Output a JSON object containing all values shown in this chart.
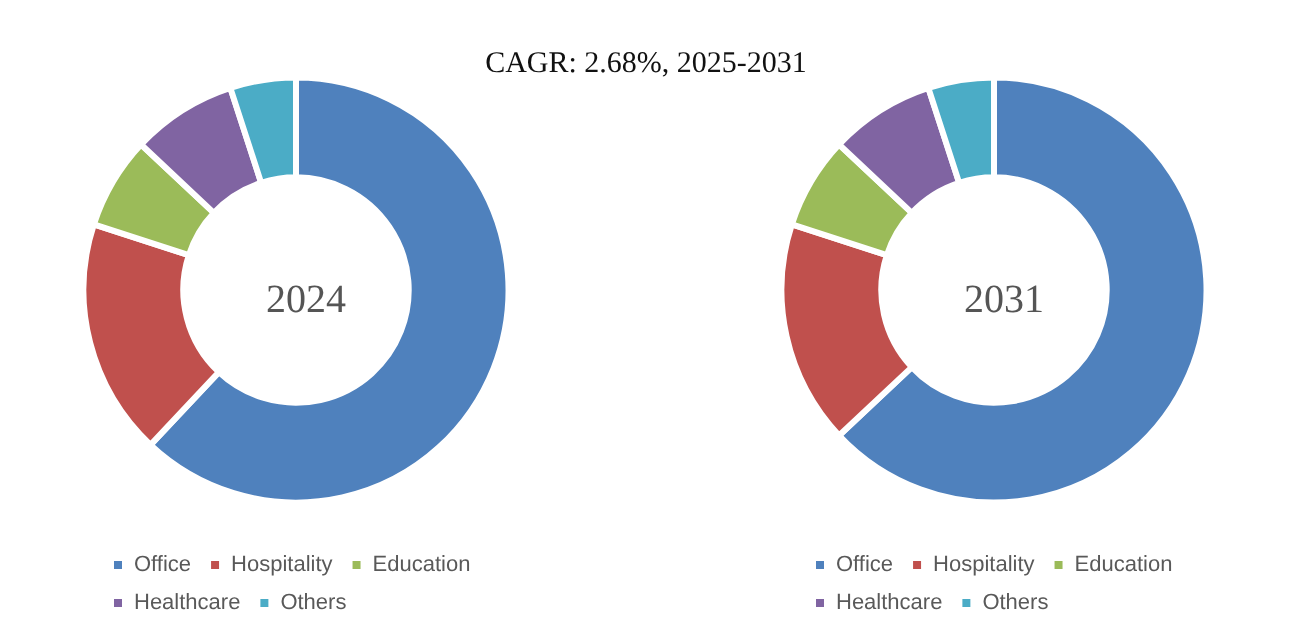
{
  "chart_data": [
    {
      "type": "donut",
      "title": "2024",
      "annotations": [
        "CAGR:  2.68%, 2025-2031"
      ],
      "categories": [
        "Office",
        "Hospitality",
        "Education",
        "Healthcare",
        "Others"
      ],
      "values": [
        62,
        18,
        7,
        8,
        5
      ],
      "colors": [
        "#4f81bd",
        "#c0504d",
        "#9bbb59",
        "#8064a2",
        "#4bacc6"
      ],
      "legend": "bottom left"
    },
    {
      "type": "donut",
      "title": "2031",
      "categories": [
        "Office",
        "Hospitality",
        "Education",
        "Healthcare",
        "Others"
      ],
      "values": [
        63,
        17,
        7,
        8,
        5
      ],
      "colors": [
        "#4f81bd",
        "#c0504d",
        "#9bbb59",
        "#8064a2",
        "#4bacc6"
      ],
      "legend": "bottom left"
    }
  ]
}
